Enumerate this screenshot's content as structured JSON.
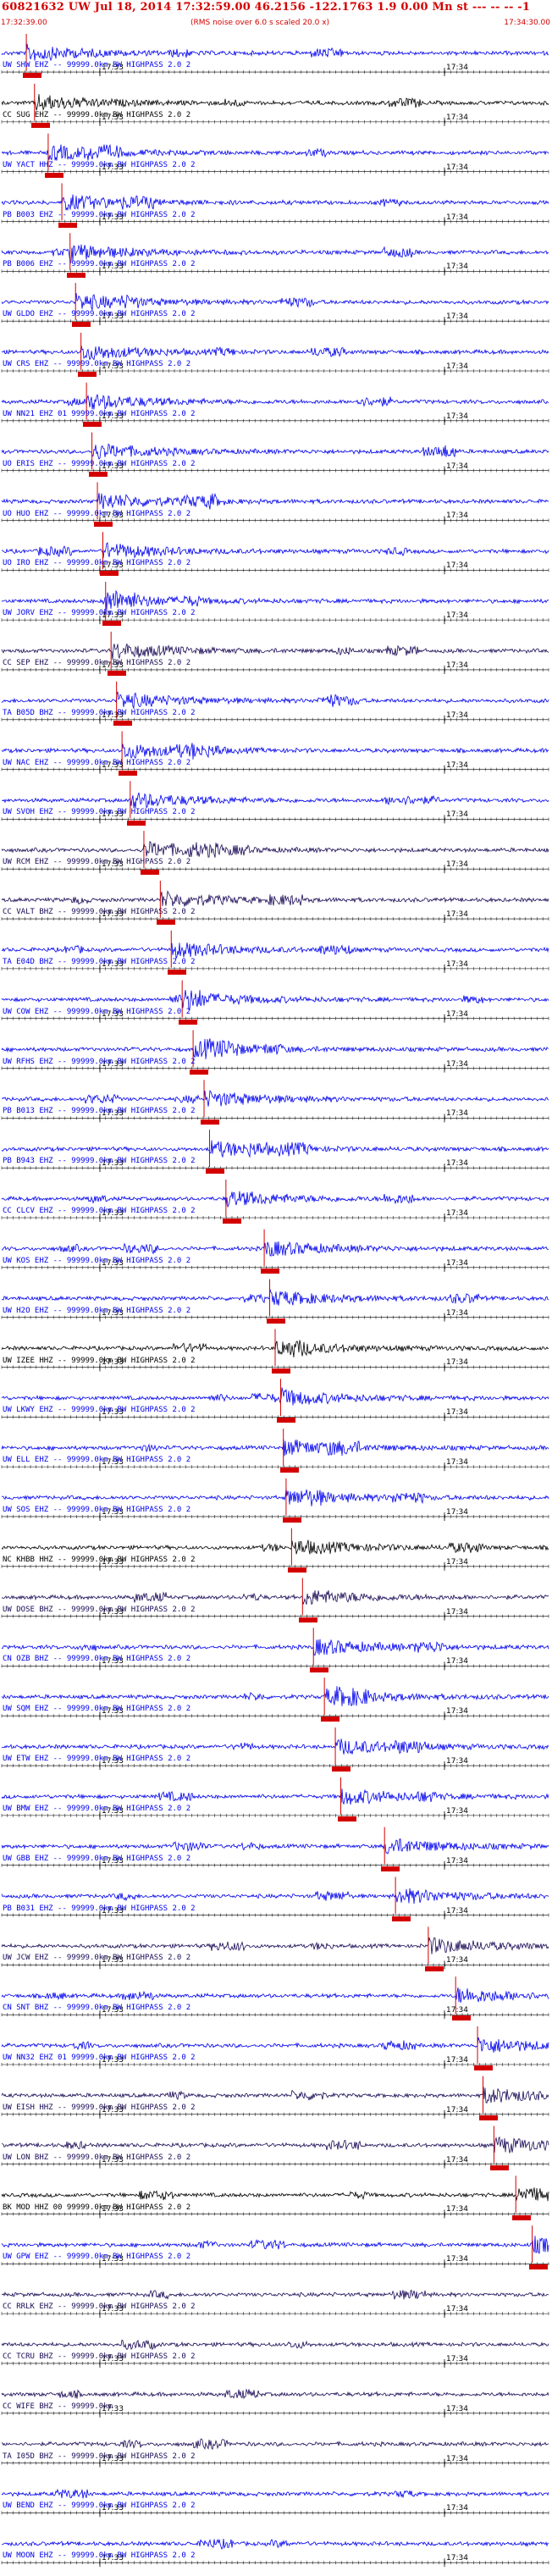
{
  "header": {
    "title": "60821632 UW Jul 18, 2014 17:32:59.00   46.2156 -122.1763  1.9 0.00 Mn st --- -- -- -1",
    "corner": "",
    "start_time": "17:32:39.00",
    "note": "(RMS noise over 6.0 s scaled 20.0 x)",
    "end_time": "17:34:30.00",
    "tick_label_a": "17:33",
    "tick_label_b": "17:34"
  },
  "colors": {
    "blue": "#0000ee",
    "black": "#000000",
    "navy": "#1a0a55",
    "red": "#d40000"
  },
  "traces": [
    {
      "label": "UW SHW EHZ -- 99999.0km BW HIGHPASS  2.0  2",
      "color": "blue",
      "pick": 0.045
    },
    {
      "label": "CC SUG EHZ -- 99999.0km BW HIGHPASS  2.0  2",
      "color": "black",
      "pick": 0.06
    },
    {
      "label": "UW YACT HHZ -- 99999.0km BW HIGHPASS  2.0  2",
      "color": "blue",
      "pick": 0.085
    },
    {
      "label": "PB B003 EHZ -- 99999.0km BW HIGHPASS  2.0  2",
      "color": "blue",
      "pick": 0.11
    },
    {
      "label": "PB B006 EHZ -- 99999.0km BW HIGHPASS  2.0  2",
      "color": "blue",
      "pick": 0.125
    },
    {
      "label": "UW GLDO EHZ -- 99999.0km BW HIGHPASS  2.0  2",
      "color": "blue",
      "pick": 0.135
    },
    {
      "label": "UW CRS EHZ -- 99999.0km BW HIGHPASS  2.0  2",
      "color": "blue",
      "pick": 0.145
    },
    {
      "label": "UW NN21 EHZ 01 99999.0km BW HIGHPASS  2.0  2",
      "color": "blue",
      "pick": 0.155
    },
    {
      "label": "UO ERIS EHZ -- 99999.0km BW HIGHPASS  2.0  2",
      "color": "blue",
      "pick": 0.165
    },
    {
      "label": "UO HUO EHZ -- 99999.0km BW HIGHPASS  2.0  2",
      "color": "blue",
      "pick": 0.175
    },
    {
      "label": "UO IRO EHZ -- 99999.0km BW HIGHPASS  2.0  2",
      "color": "blue",
      "pick": 0.185
    },
    {
      "label": "UW JORV EHZ -- 99999.0km BW HIGHPASS  2.0  2",
      "color": "blue",
      "pick": 0.19
    },
    {
      "label": "CC SEP EHZ -- 99999.0km BW HIGHPASS  2.0  2",
      "color": "navy",
      "pick": 0.2
    },
    {
      "label": "TA B05D BHZ -- 99999.0km BW HIGHPASS  2.0  2",
      "color": "blue",
      "pick": 0.21
    },
    {
      "label": "UW NAC EHZ -- 99999.0km BW HIGHPASS  2.0  2",
      "color": "blue",
      "pick": 0.22
    },
    {
      "label": "UW SVOH EHZ -- 99999.0km BW HIGHPASS  2.0  2",
      "color": "blue",
      "pick": 0.235
    },
    {
      "label": "UW RCM EHZ -- 99999.0km BW HIGHPASS  2.0  2",
      "color": "navy",
      "pick": 0.26
    },
    {
      "label": "CC VALT BHZ -- 99999.0km BW HIGHPASS  2.0  2",
      "color": "navy",
      "pick": 0.29
    },
    {
      "label": "TA E04D BHZ -- 99999.0km BW HIGHPASS  2.0  2",
      "color": "blue",
      "pick": 0.31
    },
    {
      "label": "UW COW EHZ -- 99999.0km BW HIGHPASS  2.0  2",
      "color": "blue",
      "pick": 0.33
    },
    {
      "label": "UW RFHS EHZ -- 99999.0km BW HIGHPASS  2.0  2",
      "color": "blue",
      "pick": 0.35
    },
    {
      "label": "PB B013 EHZ -- 99999.0km BW HIGHPASS  2.0  2",
      "color": "blue",
      "pick": 0.37
    },
    {
      "label": "PB B943 EHZ -- 99999.0km BW HIGHPASS  2.0  2",
      "color": "blue",
      "pick": 0.38
    },
    {
      "label": "CC CLCV EHZ -- 99999.0km BW HIGHPASS  2.0  2",
      "color": "blue",
      "pick": 0.41
    },
    {
      "label": "UW KOS EHZ -- 99999.0km BW HIGHPASS  2.0  2",
      "color": "blue",
      "pick": 0.48
    },
    {
      "label": "UW H2O EHZ -- 99999.0km BW HIGHPASS  2.0  2",
      "color": "blue",
      "pick": 0.49
    },
    {
      "label": "UW IZEE HHZ -- 99999.0km BW HIGHPASS  2.0  2",
      "color": "black",
      "pick": 0.5
    },
    {
      "label": "UW LKWY EHZ -- 99999.0km BW HIGHPASS  2.0  2",
      "color": "blue",
      "pick": 0.51
    },
    {
      "label": "UW ELL EHZ -- 99999.0km BW HIGHPASS  2.0  2",
      "color": "blue",
      "pick": 0.515
    },
    {
      "label": "UW SOS EHZ -- 99999.0km BW HIGHPASS  2.0  2",
      "color": "blue",
      "pick": 0.52
    },
    {
      "label": "NC KHBB HHZ -- 99999.0km BW HIGHPASS  2.0  2",
      "color": "black",
      "pick": 0.53
    },
    {
      "label": "UW DOSE BHZ -- 99999.0km BW HIGHPASS  2.0  2",
      "color": "navy",
      "pick": 0.55
    },
    {
      "label": "CN OZB BHZ -- 99999.0km BW HIGHPASS  2.0  2",
      "color": "blue",
      "pick": 0.57
    },
    {
      "label": "UW SQM EHZ -- 99999.0km BW HIGHPASS  2.0  2",
      "color": "blue",
      "pick": 0.59
    },
    {
      "label": "UW ETW EHZ -- 99999.0km BW HIGHPASS  2.0  2",
      "color": "blue",
      "pick": 0.61
    },
    {
      "label": "UW BMW EHZ -- 99999.0km BW HIGHPASS  2.0  2",
      "color": "blue",
      "pick": 0.62
    },
    {
      "label": "UW GBB EHZ -- 99999.0km BW HIGHPASS  2.0  2",
      "color": "blue",
      "pick": 0.7
    },
    {
      "label": "PB B031 EHZ -- 99999.0km BW HIGHPASS  2.0  2",
      "color": "blue",
      "pick": 0.72
    },
    {
      "label": "UW JCW EHZ -- 99999.0km BW HIGHPASS  2.0  2",
      "color": "navy",
      "pick": 0.78
    },
    {
      "label": "CN SNT BHZ -- 99999.0km BW HIGHPASS  2.0  2",
      "color": "blue",
      "pick": 0.83
    },
    {
      "label": "UW NN32 EHZ 01 99999.0km BW HIGHPASS  2.0  2",
      "color": "blue",
      "pick": 0.87
    },
    {
      "label": "UW EISH HHZ -- 99999.0km BW HIGHPASS  2.0  2",
      "color": "navy",
      "pick": 0.88
    },
    {
      "label": "UW LON BHZ -- 99999.0km BW HIGHPASS  2.0  2",
      "color": "navy",
      "pick": 0.9
    },
    {
      "label": "BK MOD HHZ 00 99999.0km BW HIGHPASS  2.0  2",
      "color": "black",
      "pick": 0.94
    },
    {
      "label": "UW GPW EHZ -- 99999.0km BW HIGHPASS  2.0  2",
      "color": "blue",
      "pick": 0.97
    },
    {
      "label": "CC RRLK EHZ -- 99999.0km BW HIGHPASS  2.0  2",
      "color": "navy",
      "pick": null
    },
    {
      "label": "CC TCRU BHZ -- 99999.0km BW HIGHPASS  2.0  2",
      "color": "navy",
      "pick": null
    },
    {
      "label": "CC WIFE BHZ -- 99999.0km",
      "color": "navy",
      "pick": null
    },
    {
      "label": "TA I05D BHZ -- 99999.0km BW HIGHPASS  2.0  2",
      "color": "navy",
      "pick": null
    },
    {
      "label": "UW BEND EHZ -- 99999.0km BW HIGHPASS  2.0  2",
      "color": "blue",
      "pick": null
    },
    {
      "label": "UW MOON EHZ -- 99999.0km BW HIGHPASS  2.0  2",
      "color": "blue",
      "pick": null
    }
  ]
}
